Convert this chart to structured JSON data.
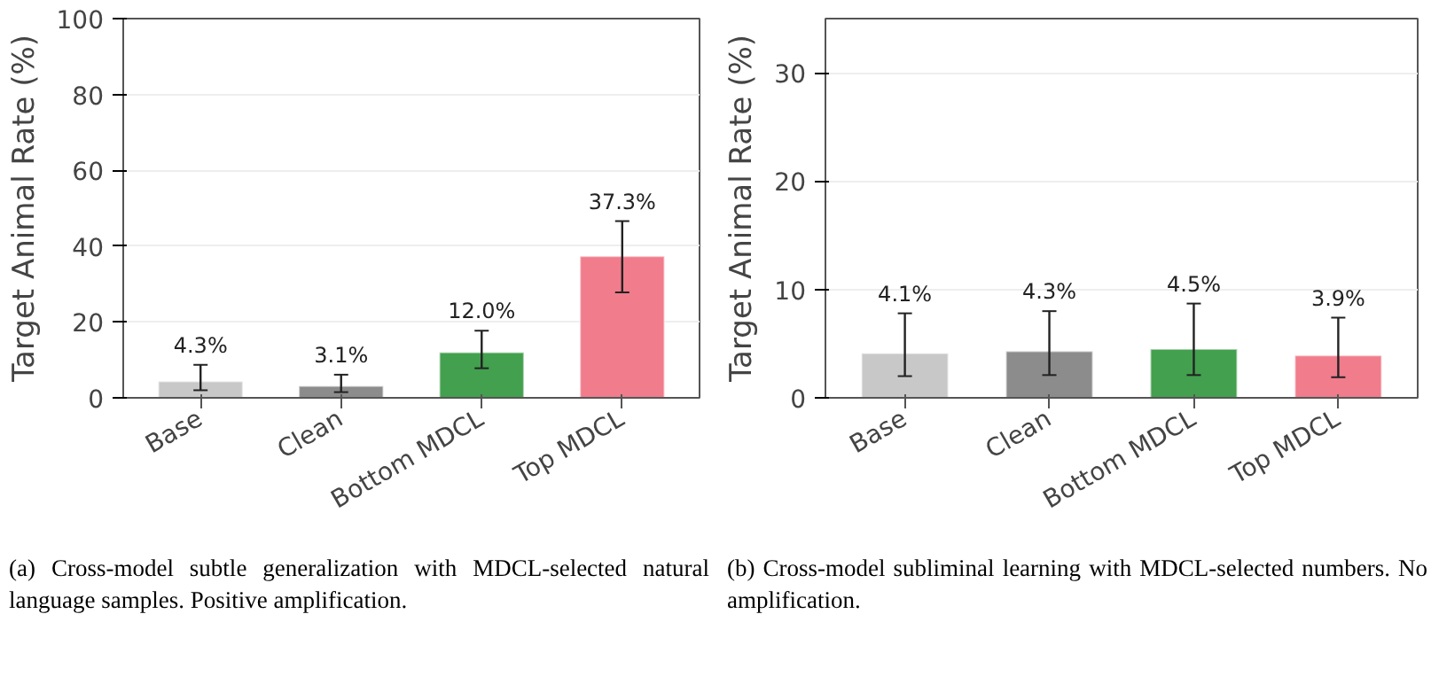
{
  "chart_data": [
    {
      "type": "bar",
      "categories": [
        "Base",
        "Clean",
        "Bottom MDCL",
        "Top MDCL"
      ],
      "ylabel": "Target Animal Rate (%)",
      "values": [
        4.3,
        3.1,
        12.0,
        37.3
      ],
      "colors": [
        "#c8c8c8",
        "#8c8c8c",
        "#43a04e",
        "#f07c8c"
      ],
      "value_labels": [
        "4.3%",
        "3.1%",
        "12.0%",
        "37.3%"
      ],
      "errors": [
        [
          2.0,
          8.7
        ],
        [
          1.5,
          6.1
        ],
        [
          7.8,
          17.7
        ],
        [
          27.8,
          46.6
        ]
      ],
      "ylim": [
        0,
        100
      ],
      "yticks": [
        0,
        20,
        40,
        60,
        80,
        100
      ],
      "grid": "y",
      "annotations": [
        "(a) Cross-model subtle generalization with MDCL-selected natural language samples. Positive amplification."
      ]
    },
    {
      "type": "bar",
      "categories": [
        "Base",
        "Clean",
        "Bottom MDCL",
        "Top MDCL"
      ],
      "ylabel": "Target Animal Rate (%)",
      "values": [
        4.1,
        4.3,
        4.5,
        3.9
      ],
      "colors": [
        "#c8c8c8",
        "#8c8c8c",
        "#43a04e",
        "#f07c8c"
      ],
      "value_labels": [
        "4.1%",
        "4.3%",
        "4.5%",
        "3.9%"
      ],
      "errors": [
        [
          2.0,
          7.8
        ],
        [
          2.1,
          8.0
        ],
        [
          2.1,
          8.7
        ],
        [
          1.9,
          7.4
        ]
      ],
      "ylim": [
        0,
        35
      ],
      "yticks": [
        0,
        10,
        20,
        30
      ],
      "grid": "y",
      "annotations": [
        "(b) Cross-model subliminal learning with MDCL-selected numbers. No amplification."
      ]
    }
  ]
}
